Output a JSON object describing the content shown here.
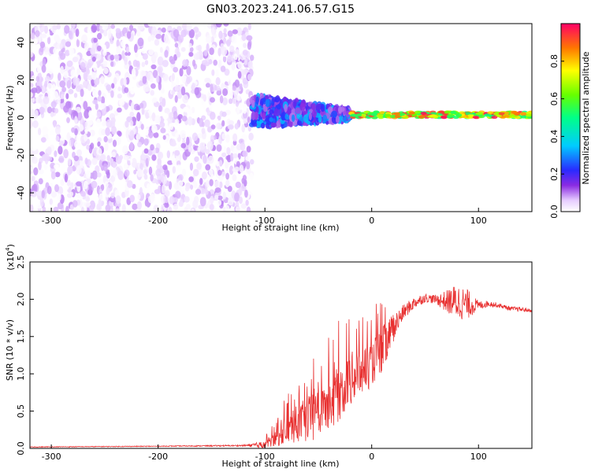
{
  "title": "GN03.2023.241.06.57.G15",
  "chart_data": [
    {
      "type": "heatmap",
      "xlabel": "Height of straight line (km)",
      "ylabel": "Frequency (Hz)",
      "xlim": [
        -320,
        150
      ],
      "ylim": [
        -50,
        50
      ],
      "x_ticks": [
        -300,
        -200,
        -100,
        0,
        100
      ],
      "y_ticks": [
        -40,
        -20,
        0,
        20,
        40
      ],
      "colorbar": {
        "label": "Normalized spectral amplitude",
        "range": [
          0.0,
          1.0
        ],
        "ticks": [
          "0.0",
          "0.2",
          "0.4",
          "0.6",
          "0.8"
        ],
        "tick_values": [
          0.0,
          0.2,
          0.4,
          0.6,
          0.8
        ]
      },
      "regions": [
        {
          "x_range": [
            -320,
            -112
          ],
          "frequency_range": [
            -50,
            50
          ],
          "amplitude": [
            0.0,
            0.1
          ],
          "description": "diffuse noise"
        },
        {
          "x_range": [
            -112,
            -20
          ],
          "frequency_range": [
            -5,
            12
          ],
          "amplitude": [
            0.1,
            0.35
          ]
        },
        {
          "x_range": [
            -20,
            150
          ],
          "frequency_range": [
            0,
            3
          ],
          "amplitude": [
            0.5,
            1.0
          ]
        }
      ]
    },
    {
      "type": "line",
      "xlabel": "Height of straight line (km)",
      "ylabel": "SNR (10 * v/v)",
      "y_multiplier": "(x10^4)",
      "xlim": [
        -320,
        150
      ],
      "ylim": [
        0,
        2.5
      ],
      "x_ticks": [
        -300,
        -200,
        -100,
        0,
        100
      ],
      "y_ticks": [
        0.0,
        0.5,
        1.0,
        1.5,
        2.0,
        2.5
      ],
      "y_tick_labels": [
        "0.0",
        "0.5",
        "1.0",
        "1.5",
        "2.0",
        "2.5"
      ],
      "color": "#e83030",
      "series": [
        {
          "x": [
            -320,
            -200,
            -120,
            -100,
            -90,
            -80,
            -70,
            -60,
            -50,
            -40,
            -30,
            -20,
            -10,
            0,
            10,
            20,
            30,
            40,
            50,
            60,
            70,
            80,
            90,
            100,
            110,
            120,
            130,
            140,
            150
          ],
          "y": [
            0.02,
            0.03,
            0.04,
            0.06,
            0.15,
            0.28,
            0.38,
            0.45,
            0.55,
            0.7,
            0.85,
            1.0,
            1.1,
            1.2,
            1.4,
            1.65,
            1.85,
            1.97,
            2.03,
            2.01,
            2.0,
            2.02,
            1.97,
            1.93,
            1.95,
            1.92,
            1.88,
            1.87,
            1.85
          ],
          "noise": [
            0.005,
            0.005,
            0.01,
            0.05,
            0.1,
            0.2,
            0.25,
            0.3,
            0.35,
            0.4,
            0.4,
            0.35,
            0.35,
            0.3,
            0.3,
            0.2,
            0.1,
            0.08,
            0.06,
            0.06,
            0.15,
            0.25,
            0.2,
            0.06,
            0.04,
            0.03,
            0.03,
            0.03,
            0.02
          ]
        }
      ]
    }
  ]
}
